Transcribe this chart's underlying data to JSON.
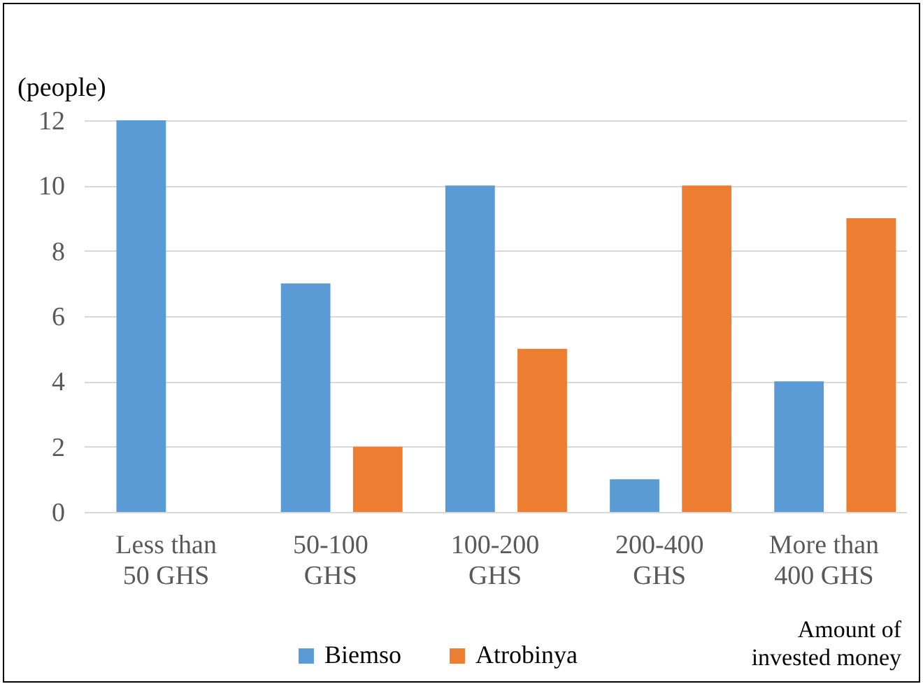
{
  "chart_data": {
    "type": "bar",
    "ylabel": "(people)",
    "xlabel": "Amount of invested money",
    "categories": [
      "Less than\n50 GHS",
      "50-100\nGHS",
      "100-200\nGHS",
      "200-400\nGHS",
      "More than\n400 GHS"
    ],
    "series": [
      {
        "name": "Biemso",
        "color": "#5b9bd5",
        "values": [
          12,
          7,
          10,
          1,
          4
        ]
      },
      {
        "name": "Atrobinya",
        "color": "#ed7d31",
        "values": [
          0,
          2,
          5,
          10,
          9
        ]
      }
    ],
    "ylim": [
      0,
      12
    ],
    "yticks": [
      0,
      2,
      4,
      6,
      8,
      10,
      12
    ],
    "grid": "y",
    "legend": "bottom"
  }
}
